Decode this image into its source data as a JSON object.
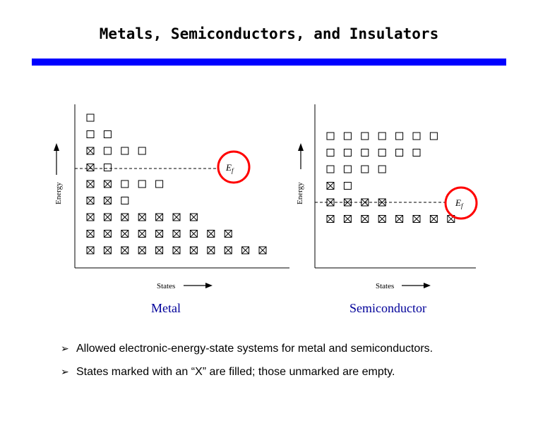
{
  "title": "Metals, Semiconductors, and Insulators",
  "accent_color": "#0000ff",
  "diagram": {
    "ylabel": "Energy",
    "xlabel": "States",
    "fermi_label_main": "E",
    "fermi_label_sub": "f",
    "fermi_circle_color": "#ff0000",
    "metal": {
      "caption": "Metal",
      "rows": [
        "E",
        "EE",
        "XEEE",
        "XE",
        "XXEEE",
        "XXE",
        "XXXXXXX",
        "XXXXXXXXX",
        "XXXXXXXXXXX"
      ]
    },
    "semiconductor": {
      "caption": "Semiconductor",
      "rows": [
        "EEEEEEE",
        "EEEEEE",
        "EEEE",
        "XE",
        "XXXX",
        "XXXXXXXX"
      ]
    }
  },
  "bullets": [
    "Allowed electronic-energy-state systems for metal and semiconductors.",
    "States marked with an “X” are filled; those unmarked are empty."
  ],
  "bullet_icon": "arrow-bullet-icon"
}
